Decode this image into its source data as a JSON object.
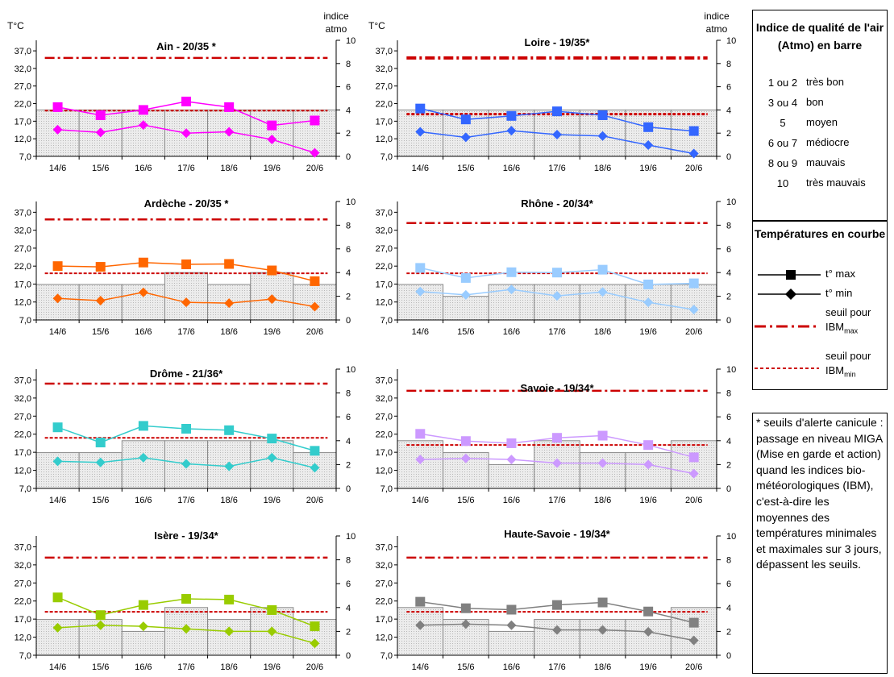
{
  "legend": {
    "atmo_title": "Indice de qualité de l'air (Atmo) en barre",
    "atmo_rows": [
      {
        "code": "1 ou 2",
        "label": "très bon"
      },
      {
        "code": "3 ou 4",
        "label": "bon"
      },
      {
        "code": "5",
        "label": "moyen"
      },
      {
        "code": "6 ou 7",
        "label": "médiocre"
      },
      {
        "code": "8 ou 9",
        "label": "mauvais"
      },
      {
        "code": "10",
        "label": "très mauvais"
      }
    ],
    "temp_title": "Températures en courbe",
    "tmax_label": "t° max",
    "tmin_label": "t° min",
    "seuil_label": "seuil pour",
    "ibm": "IBM",
    "ibm_max_sub": "max",
    "ibm_min_sub": "min"
  },
  "note": "* seuils d'alerte canicule : passage en niveau MIGA (Mise en garde et action) quand les indices bio-météorologiques (IBM), c'est-à-dire les moyennes des températures minimales et maximales sur 3 jours, dépassent les seuils.",
  "colors": {
    "threshold": "#cc0000",
    "grid_fill": "#e4e4e4",
    "bar_stroke": "#888888"
  },
  "chart_data": [
    {
      "type": "line",
      "title": "Ain - 20/35 *",
      "ylabel": "T°C",
      "y2label": [
        "indice",
        "atmo"
      ],
      "categories": [
        "14/6",
        "15/6",
        "16/6",
        "17/6",
        "18/6",
        "19/6",
        "20/6"
      ],
      "ylim": [
        7,
        40
      ],
      "yticks": [
        "7,0",
        "12,0",
        "17,0",
        "22,0",
        "27,0",
        "32,0",
        "37,0"
      ],
      "y2lim": [
        0,
        10
      ],
      "y2ticks": [
        "0",
        "2",
        "4",
        "6",
        "8",
        "10"
      ],
      "color": "#ff00ff",
      "series": [
        {
          "values": [
            21.0,
            18.7,
            20.2,
            22.6,
            21.0,
            15.8,
            17.2
          ]
        },
        {
          "values": [
            14.6,
            13.8,
            15.9,
            13.6,
            14.0,
            11.8,
            8.0
          ]
        }
      ],
      "atmo": [
        4,
        4,
        4,
        4,
        4,
        4,
        4
      ],
      "seuil_max": 35,
      "seuil_min": 20
    },
    {
      "type": "line",
      "title": "Loire - 19/35*",
      "ylabel": "T°C",
      "y2label": [
        "indice",
        "atmo"
      ],
      "categories": [
        "14/6",
        "15/6",
        "16/6",
        "17/6",
        "18/6",
        "19/6",
        "20/6"
      ],
      "ylim": [
        7,
        40
      ],
      "yticks": [
        "7,0",
        "12,0",
        "17,0",
        "22,0",
        "27,0",
        "32,0",
        "37,0"
      ],
      "y2lim": [
        0,
        10
      ],
      "y2ticks": [
        "0",
        "2",
        "4",
        "6",
        "8",
        "10"
      ],
      "color": "#3366ff",
      "series": [
        {
          "values": [
            20.6,
            17.5,
            18.5,
            19.8,
            18.7,
            15.3,
            14.2
          ]
        },
        {
          "values": [
            14.0,
            12.4,
            14.3,
            13.2,
            12.8,
            10.2,
            7.8
          ]
        }
      ],
      "atmo": [
        4,
        4,
        4,
        4,
        4,
        4,
        4
      ],
      "seuil_max": 35,
      "seuil_min": 19
    },
    {
      "type": "line",
      "title": "Ardèche - 20/35 *",
      "ylabel": "",
      "y2label": [],
      "categories": [
        "14/6",
        "15/6",
        "16/6",
        "17/6",
        "18/6",
        "19/6",
        "20/6"
      ],
      "ylim": [
        7,
        40
      ],
      "yticks": [
        "7,0",
        "12,0",
        "17,0",
        "22,0",
        "27,0",
        "32,0",
        "37,0"
      ],
      "y2lim": [
        0,
        10
      ],
      "y2ticks": [
        "0",
        "2",
        "4",
        "6",
        "8",
        "10"
      ],
      "color": "#ff6600",
      "series": [
        {
          "values": [
            22.0,
            21.8,
            23.0,
            22.5,
            22.6,
            20.8,
            17.8
          ]
        },
        {
          "values": [
            13.0,
            12.4,
            14.7,
            11.9,
            11.7,
            12.8,
            10.7
          ]
        }
      ],
      "atmo": [
        3,
        3,
        3,
        4,
        3,
        4,
        3
      ],
      "seuil_max": 35,
      "seuil_min": 20
    },
    {
      "type": "line",
      "title": "Rhône - 20/34*",
      "ylabel": "",
      "y2label": [],
      "categories": [
        "14/6",
        "15/6",
        "16/6",
        "17/6",
        "18/6",
        "19/6",
        "20/6"
      ],
      "ylim": [
        7,
        40
      ],
      "yticks": [
        "7,0",
        "12,0",
        "17,0",
        "22,0",
        "27,0",
        "32,0",
        "37,0"
      ],
      "y2lim": [
        0,
        10
      ],
      "y2ticks": [
        "0",
        "2",
        "4",
        "6",
        "8",
        "10"
      ],
      "color": "#99ccff",
      "series": [
        {
          "values": [
            21.5,
            18.7,
            20.3,
            20.2,
            21.0,
            16.9,
            17.2
          ]
        },
        {
          "values": [
            14.9,
            14.0,
            15.5,
            13.7,
            14.8,
            11.9,
            9.9
          ]
        }
      ],
      "atmo": [
        3,
        2,
        3,
        3,
        3,
        3,
        3
      ],
      "seuil_max": 34,
      "seuil_min": 20
    },
    {
      "type": "line",
      "title": "Drôme - 21/36*",
      "ylabel": "",
      "y2label": [],
      "categories": [
        "14/6",
        "15/6",
        "16/6",
        "17/6",
        "18/6",
        "19/6",
        "20/6"
      ],
      "ylim": [
        7,
        40
      ],
      "yticks": [
        "7,0",
        "12,0",
        "17,0",
        "22,0",
        "27,0",
        "32,0",
        "37,0"
      ],
      "y2lim": [
        0,
        10
      ],
      "y2ticks": [
        "0",
        "2",
        "4",
        "6",
        "8",
        "10"
      ],
      "color": "#33cccc",
      "series": [
        {
          "values": [
            23.9,
            19.7,
            24.3,
            23.5,
            23.1,
            20.8,
            17.4
          ]
        },
        {
          "values": [
            14.5,
            14.2,
            15.5,
            13.8,
            13.1,
            15.5,
            12.7
          ]
        }
      ],
      "atmo": [
        3,
        3,
        4,
        4,
        4,
        4,
        3
      ],
      "seuil_max": 36,
      "seuil_min": 21
    },
    {
      "type": "line",
      "title": "Savoie - 19/34*",
      "ylabel": "",
      "y2label": [],
      "categories": [
        "14/6",
        "15/6",
        "16/6",
        "17/6",
        "18/6",
        "19/6",
        "20/6"
      ],
      "ylim": [
        7,
        40
      ],
      "yticks": [
        "7,0",
        "12,0",
        "17,0",
        "22,0",
        "27,0",
        "32,0",
        "37,0"
      ],
      "y2lim": [
        0,
        10
      ],
      "y2ticks": [
        "0",
        "2",
        "4",
        "6",
        "8",
        "10"
      ],
      "color": "#cc99ff",
      "series": [
        {
          "values": [
            22.1,
            20.1,
            19.5,
            21.0,
            21.6,
            19.0,
            15.6
          ]
        },
        {
          "values": [
            15.0,
            15.3,
            15.0,
            14.0,
            14.0,
            13.6,
            11.1
          ]
        }
      ],
      "atmo": [
        4,
        3,
        2,
        4,
        3,
        3,
        4
      ],
      "seuil_max": 34,
      "seuil_min": 19
    },
    {
      "type": "line",
      "title": "Isère - 19/34*",
      "ylabel": "",
      "y2label": [],
      "categories": [
        "14/6",
        "15/6",
        "16/6",
        "17/6",
        "18/6",
        "19/6",
        "20/6"
      ],
      "ylim": [
        7,
        40
      ],
      "yticks": [
        "7,0",
        "12,0",
        "17,0",
        "22,0",
        "27,0",
        "32,0",
        "37,0"
      ],
      "y2lim": [
        0,
        10
      ],
      "y2ticks": [
        "0",
        "2",
        "4",
        "6",
        "8",
        "10"
      ],
      "color": "#99cc00",
      "series": [
        {
          "values": [
            23.0,
            18.1,
            20.9,
            22.6,
            22.4,
            19.5,
            15.0
          ]
        },
        {
          "values": [
            14.6,
            15.3,
            15.0,
            14.3,
            13.6,
            13.6,
            10.3
          ]
        }
      ],
      "atmo": [
        3,
        3,
        2,
        4,
        3,
        4,
        3
      ],
      "seuil_max": 34,
      "seuil_min": 19
    },
    {
      "type": "line",
      "title": "Haute-Savoie - 19/34*",
      "ylabel": "",
      "y2label": [],
      "categories": [
        "14/6",
        "15/6",
        "16/6",
        "17/6",
        "18/6",
        "19/6",
        "20/6"
      ],
      "ylim": [
        7,
        40
      ],
      "yticks": [
        "7,0",
        "12,0",
        "17,0",
        "22,0",
        "27,0",
        "32,0",
        "37,0"
      ],
      "y2lim": [
        0,
        10
      ],
      "y2ticks": [
        "0",
        "2",
        "4",
        "6",
        "8",
        "10"
      ],
      "color": "#808080",
      "series": [
        {
          "values": [
            21.8,
            20.0,
            19.6,
            20.9,
            21.6,
            19.1,
            16.0
          ]
        },
        {
          "values": [
            15.3,
            15.6,
            15.3,
            14.0,
            14.0,
            13.5,
            11.1
          ]
        }
      ],
      "atmo": [
        4,
        3,
        2,
        3,
        3,
        3,
        4
      ],
      "seuil_max": 34,
      "seuil_min": 19
    }
  ]
}
